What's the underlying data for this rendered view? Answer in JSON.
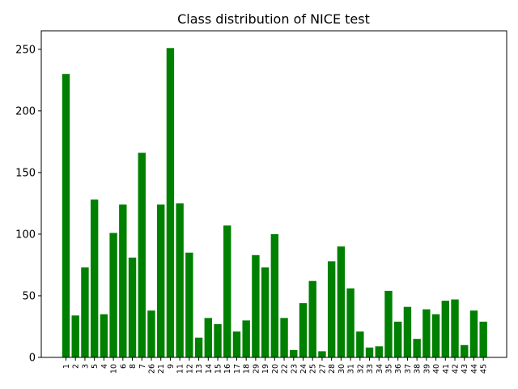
{
  "chart_data": {
    "type": "bar",
    "title": "Class distribution of NICE test",
    "xlabel": "",
    "ylabel": "",
    "ylim": [
      0,
      265
    ],
    "yticks": [
      0,
      50,
      100,
      150,
      200,
      250
    ],
    "bar_color": "#008000",
    "grid": false,
    "categories": [
      "1",
      "2",
      "3",
      "5",
      "4",
      "10",
      "6",
      "8",
      "7",
      "26",
      "21",
      "9",
      "11",
      "12",
      "13",
      "14",
      "15",
      "16",
      "17",
      "18",
      "29",
      "19",
      "20",
      "22",
      "23",
      "24",
      "25",
      "27",
      "28",
      "30",
      "31",
      "32",
      "33",
      "34",
      "35",
      "36",
      "37",
      "38",
      "39",
      "40",
      "41",
      "42",
      "43",
      "44",
      "45"
    ],
    "values": [
      230,
      34,
      73,
      128,
      35,
      101,
      124,
      81,
      166,
      38,
      124,
      251,
      125,
      85,
      16,
      32,
      27,
      107,
      21,
      30,
      83,
      73,
      100,
      32,
      6,
      44,
      62,
      5,
      78,
      90,
      56,
      21,
      8,
      9,
      54,
      29,
      41,
      15,
      39,
      35,
      46,
      47,
      10,
      38,
      29
    ]
  }
}
